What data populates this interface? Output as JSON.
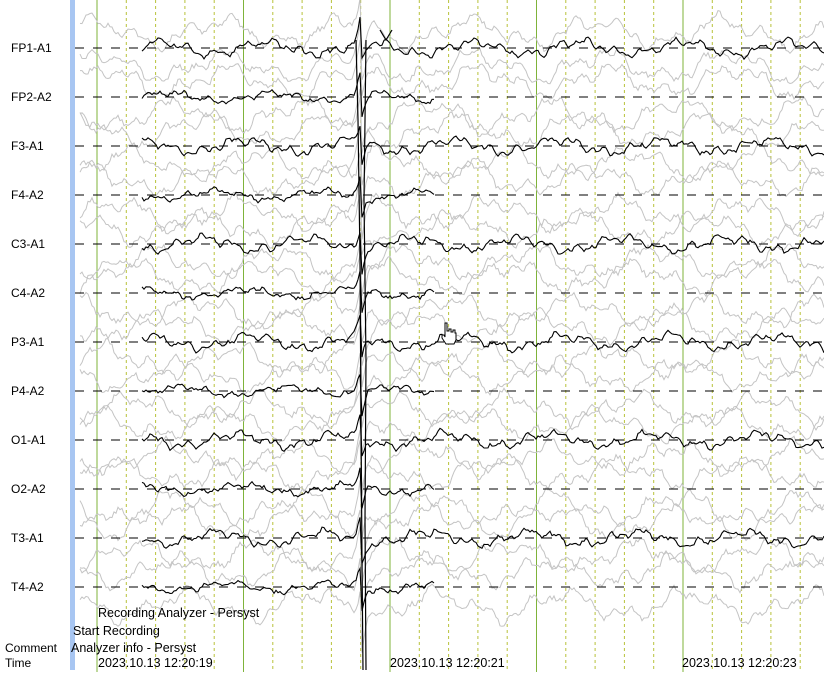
{
  "channels": [
    "FP1-A1",
    "FP2-A2",
    "F3-A1",
    "F4-A2",
    "C3-A1",
    "C4-A2",
    "P3-A1",
    "P4-A2",
    "O1-A1",
    "O2-A2",
    "T3-A1",
    "T4-A2"
  ],
  "annotations": {
    "recording_analyzer": "Recording Analyzer - Persyst",
    "start_recording": "Start Recording",
    "analyzer_info": "Analyzer info - Persyst"
  },
  "row_labels": {
    "comment": "Comment",
    "time": "Time"
  },
  "timestamps": [
    "2023.10.13 12:20:19",
    "2023.10.13 12:20:21",
    "2023.10.13 12:20:23"
  ],
  "colors": {
    "trace_primary": "#000000",
    "trace_overlay": "#c4c4c4",
    "baseline": "#000000",
    "second_gridline": "#7fb33a",
    "subdivision_gridline": "#b8c23a",
    "scroll_bar": "#a8c6f2"
  },
  "cursor_icon": "hand-pointer-icon"
}
